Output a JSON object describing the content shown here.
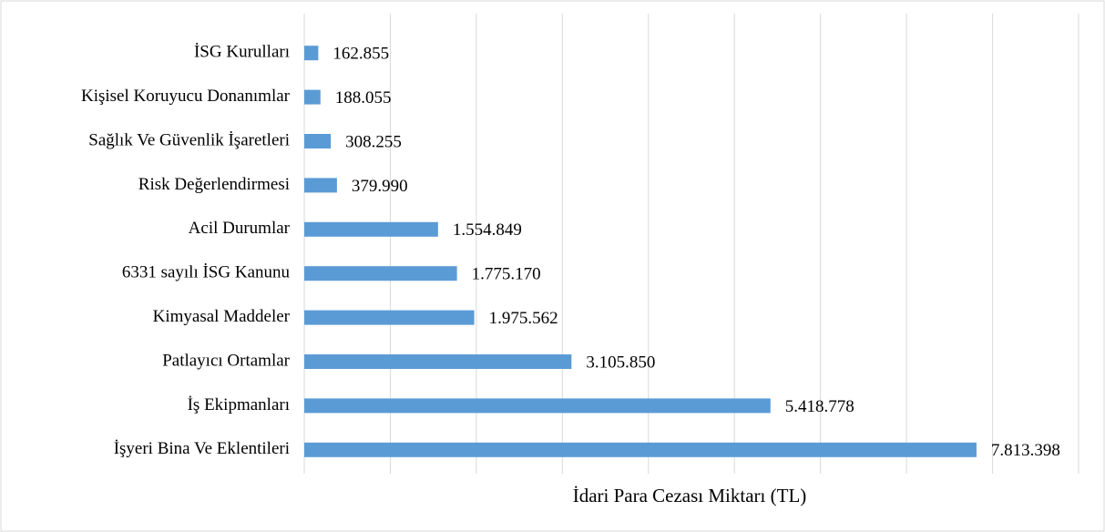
{
  "chart_data": {
    "type": "bar",
    "orientation": "horizontal",
    "x_label": "İdari Para Cezası Miktarı (TL)",
    "categories": [
      "İSG Kurulları",
      "Kişisel Koruyucu Donanımlar",
      "Sağlık Ve Güvenlik İşaretleri",
      "Risk Değerlendirmesi",
      "Acil Durumlar",
      "6331 sayılı İSG Kanunu",
      "Kimyasal Maddeler",
      "Patlayıcı Ortamlar",
      "İş Ekipmanları",
      "İşyeri Bina Ve Eklentileri"
    ],
    "values": [
      162855,
      188055,
      308255,
      379990,
      1554849,
      1775170,
      1975562,
      3105850,
      5418778,
      7813398
    ],
    "value_labels": [
      "162.855",
      "188.055",
      "308.255",
      "379.990",
      "1.554.849",
      "1.775.170",
      "1.975.562",
      "3.105.850",
      "5.418.778",
      "7.813.398"
    ],
    "color": "#5b9bd5",
    "xlim": [
      0,
      9000000
    ],
    "xticks": [
      0,
      1000000,
      2000000,
      3000000,
      4000000,
      5000000,
      6000000,
      7000000,
      8000000,
      9000000
    ],
    "grid": true
  }
}
